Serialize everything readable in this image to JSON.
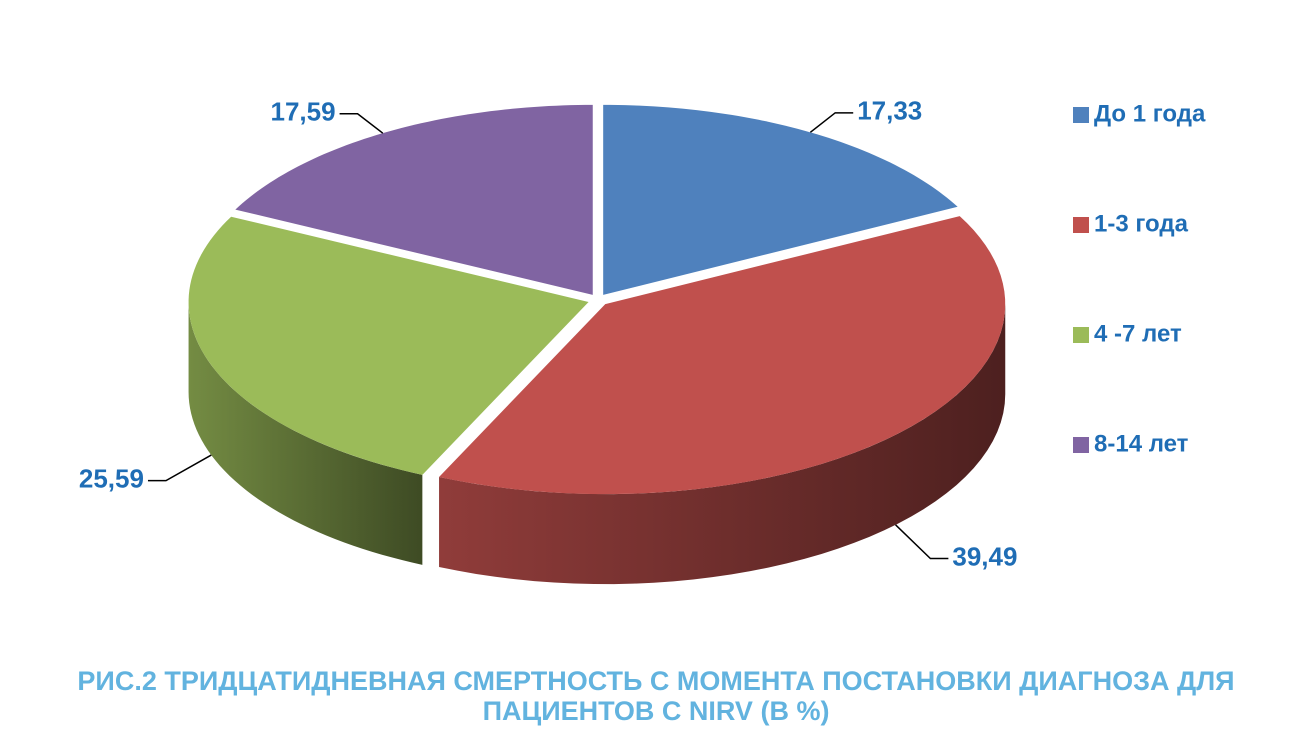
{
  "chart_data": {
    "type": "pie",
    "title": "РИС.2 ТРИДЦАТИДНЕВНАЯ СМЕРТНОСТЬ С МОМЕНТА ПОСТАНОВКИ ДИАГНОЗА ДЛЯ ПАЦИЕНТОВ С NIRV (В %)",
    "categories": [
      "До 1 года",
      "1-3 года",
      "4 -7 лет",
      "8-14 лет"
    ],
    "values": [
      17.33,
      39.49,
      25.59,
      17.59
    ],
    "value_labels": [
      "17,33",
      "39,49",
      "25,59",
      "17,59"
    ],
    "colors": [
      "#4f81bd",
      "#c0504d",
      "#9bbb59",
      "#8064a2"
    ],
    "legend": "right"
  }
}
